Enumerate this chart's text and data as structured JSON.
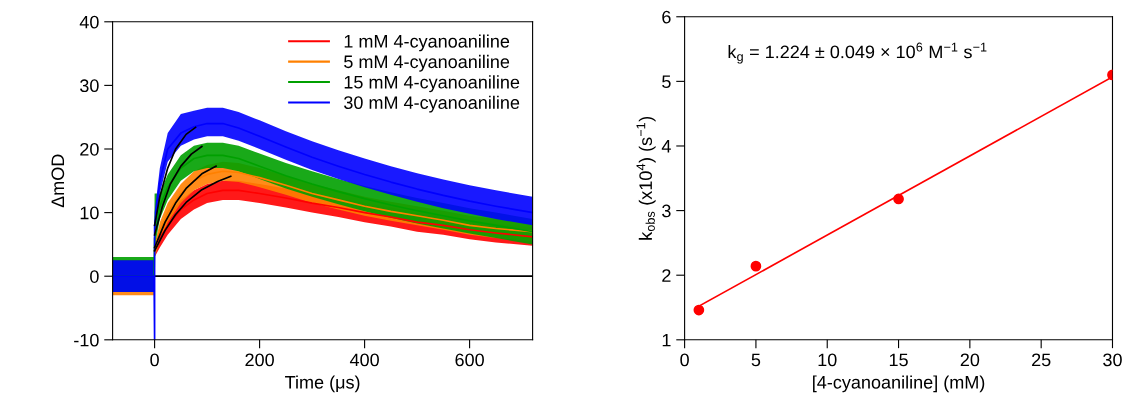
{
  "chart_data": [
    {
      "type": "line",
      "xlabel": "Time (μs)",
      "ylabel": "ΔmOD",
      "xlim": [
        -80,
        720
      ],
      "ylim": [
        -10,
        40
      ],
      "xticks": [
        0,
        200,
        400,
        600
      ],
      "yticks": [
        -10,
        0,
        10,
        20,
        30,
        40
      ],
      "legend": "top right",
      "ref_lines": [
        {
          "axis": "y",
          "value": 0,
          "color": "#000000"
        }
      ],
      "series": [
        {
          "name": "1 mM 4-cyanoaniline",
          "color": "#ff0000",
          "x": [
            -80,
            -40,
            -1,
            0,
            10,
            25,
            50,
            75,
            100,
            130,
            160,
            200,
            250,
            300,
            350,
            400,
            450,
            500,
            550,
            600,
            650,
            720
          ],
          "values": [
            null,
            null,
            null,
            4,
            6,
            8,
            10.5,
            12,
            13,
            13.5,
            13.5,
            13,
            12.3,
            11.5,
            10.8,
            10,
            9.3,
            8.5,
            8,
            7.3,
            6.8,
            6.2
          ],
          "lower": [
            -2.5,
            -2.5,
            -2.5,
            3,
            4.5,
            6.5,
            9,
            10.5,
            11.5,
            12,
            12,
            11.5,
            10.8,
            10,
            9.3,
            8.5,
            7.8,
            7,
            6.5,
            5.8,
            5.3,
            4.8
          ],
          "upper": [
            2.5,
            2.5,
            2.5,
            5,
            7.5,
            9.5,
            12,
            13.5,
            14.5,
            15,
            15,
            14.5,
            13.8,
            13,
            12.3,
            11.5,
            10.8,
            10,
            9.5,
            8.8,
            8.3,
            7.7
          ]
        },
        {
          "name": "5 mM 4-cyanoaniline",
          "color": "#ff8000",
          "x": [
            -80,
            -40,
            -1,
            0,
            10,
            25,
            50,
            75,
            100,
            130,
            160,
            200,
            250,
            300,
            350,
            400,
            450,
            500,
            550,
            600,
            650,
            720
          ],
          "values": [
            null,
            null,
            null,
            4,
            7,
            10,
            13,
            15,
            16,
            16.5,
            16.3,
            15.5,
            14.3,
            13,
            12,
            11,
            10.2,
            9.5,
            8.8,
            8,
            7.5,
            7
          ],
          "lower": [
            -3,
            -3,
            -3,
            3,
            5.5,
            8.5,
            11.5,
            13.5,
            14.5,
            15,
            14.8,
            14,
            12.8,
            11.5,
            10.5,
            9.5,
            8.7,
            8,
            7.3,
            6.5,
            6,
            5.5
          ],
          "upper": [
            2.5,
            2.5,
            2.5,
            5,
            8.5,
            11.5,
            14.5,
            16.5,
            17.5,
            18,
            17.8,
            17,
            15.8,
            14.5,
            13.5,
            12.5,
            11.7,
            11,
            10.3,
            9.5,
            9,
            8.5
          ]
        },
        {
          "name": "15 mM 4-cyanoaniline",
          "color": "#00a000",
          "x": [
            -80,
            -40,
            -1,
            0,
            10,
            25,
            50,
            75,
            100,
            130,
            160,
            200,
            250,
            300,
            350,
            400,
            450,
            500,
            550,
            600,
            650,
            720
          ],
          "values": [
            0,
            0,
            0,
            6,
            11,
            14,
            17,
            18.5,
            19,
            19,
            18.5,
            17.3,
            15.8,
            14.5,
            13.3,
            12.2,
            11.2,
            10.3,
            9.5,
            8.7,
            8,
            7
          ],
          "lower": [
            -2.5,
            -2.5,
            -2.5,
            4.5,
            9,
            12,
            15,
            16.5,
            17,
            17,
            16.5,
            15.3,
            13.8,
            12.5,
            11.3,
            10.2,
            9.2,
            8.3,
            7.5,
            6.7,
            6,
            5
          ],
          "upper": [
            3,
            3,
            3,
            13,
            13,
            16,
            19,
            20.5,
            21,
            21,
            20.5,
            19.3,
            17.8,
            16.5,
            15.3,
            14.2,
            13.2,
            12.3,
            11.5,
            10.7,
            10,
            9
          ]
        },
        {
          "name": "30 mM 4-cyanoaniline",
          "color": "#0000ff",
          "x": [
            -80,
            -40,
            -1,
            0,
            0,
            10,
            25,
            50,
            75,
            100,
            130,
            160,
            200,
            250,
            300,
            350,
            400,
            450,
            500,
            550,
            600,
            650,
            720
          ],
          "values": [
            0,
            0,
            0,
            -10,
            8,
            15,
            20,
            22.5,
            23.5,
            24,
            24,
            23.3,
            22,
            20.3,
            18.7,
            17.3,
            16,
            14.8,
            13.7,
            12.7,
            11.8,
            11,
            10
          ],
          "lower": [
            -2.5,
            -2.5,
            -2.5,
            -10,
            6,
            13,
            18,
            20.5,
            21.5,
            22,
            22,
            21.3,
            20,
            18.3,
            16.7,
            15.3,
            14,
            12.8,
            11.7,
            10.7,
            9.8,
            9,
            8
          ],
          "upper": [
            2.5,
            2.5,
            2.5,
            -10,
            10,
            17,
            22.5,
            25.5,
            26,
            26.5,
            26.5,
            25.8,
            24.5,
            22.8,
            21.2,
            19.8,
            18.5,
            17.3,
            16.2,
            15.2,
            14.3,
            13.5,
            12.5
          ]
        },
        {
          "color": "#000000",
          "x": [
            0,
            20,
            40,
            60,
            90,
            120,
            145
          ],
          "values": [
            4,
            7.2,
            9.7,
            11.6,
            13.6,
            14.9,
            15.7
          ]
        },
        {
          "color": "#000000",
          "x": [
            0,
            20,
            40,
            60,
            90,
            117
          ],
          "values": [
            4.5,
            8.5,
            11.5,
            13.8,
            16.1,
            17.3
          ]
        },
        {
          "color": "#000000",
          "x": [
            0,
            15,
            30,
            50,
            70,
            90
          ],
          "values": [
            6.5,
            11,
            14.5,
            17.3,
            19.2,
            20.4
          ]
        },
        {
          "color": "#000000",
          "x": [
            0,
            10,
            25,
            40,
            60,
            78
          ],
          "values": [
            8,
            12.5,
            17,
            20,
            22.3,
            23.4
          ]
        }
      ]
    },
    {
      "type": "scatter",
      "xlabel": "[4-cyanoaniline] (mM)",
      "ylabel": "k$_{obs}$ (x10$^{4}$) (s$^{−1}$)",
      "xlim": [
        0,
        30
      ],
      "ylim": [
        1,
        6
      ],
      "xticks": [
        0,
        5,
        10,
        15,
        20,
        25,
        30
      ],
      "yticks": [
        1,
        2,
        3,
        4,
        5,
        6
      ],
      "annotations": [
        "k$_{g}$ = 1.224 ± 0.049 × 10$^{6}$ M$^{−1}$ s$^{−1}$"
      ],
      "series": [
        {
          "color": "#ff0000",
          "marker": "circle",
          "x": [
            1,
            5,
            15,
            30
          ],
          "values": [
            1.46,
            2.14,
            3.18,
            5.1
          ]
        },
        {
          "type": "line",
          "marker": "none",
          "color": "#ff0000",
          "x": [
            1,
            30
          ],
          "values": [
            1.52,
            5.07
          ]
        }
      ]
    }
  ]
}
